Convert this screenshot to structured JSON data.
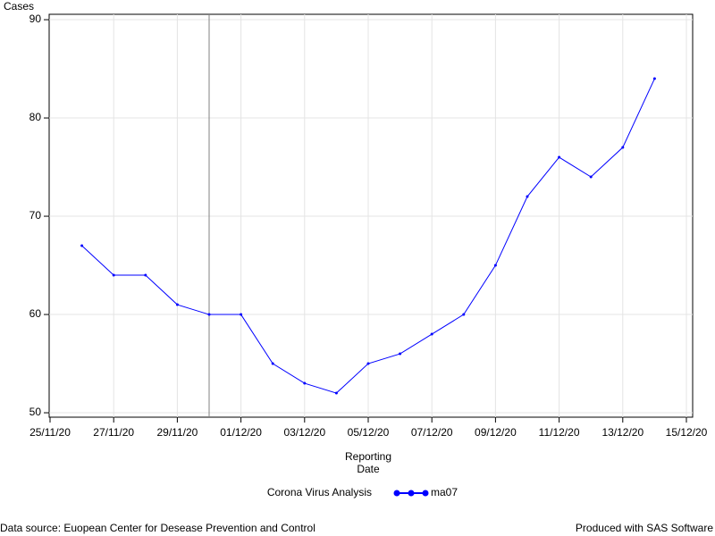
{
  "chart_data": {
    "type": "line",
    "y_label": "Cases",
    "x_label": [
      "Reporting",
      "Date"
    ],
    "x": [
      "26/11/20",
      "27/11/20",
      "28/11/20",
      "29/11/20",
      "30/11/20",
      "01/12/20",
      "02/12/20",
      "03/12/20",
      "04/12/20",
      "05/12/20",
      "06/12/20",
      "07/12/20",
      "08/12/20",
      "09/12/20",
      "10/12/20",
      "11/12/20",
      "12/12/20",
      "13/12/20",
      "14/12/20"
    ],
    "series": [
      {
        "name": "ma07",
        "color": "#0000ff",
        "values": [
          67,
          64,
          64,
          61,
          60,
          60,
          55,
          53,
          52,
          55,
          56,
          58,
          60,
          65,
          72,
          76,
          74,
          77,
          84
        ]
      }
    ],
    "legend_title": "Corona Virus Analysis",
    "xlim": [
      "25/11/20",
      "15/12/20"
    ],
    "xticks": [
      "25/11/20",
      "27/11/20",
      "29/11/20",
      "01/12/20",
      "03/12/20",
      "05/12/20",
      "07/12/20",
      "09/12/20",
      "11/12/20",
      "13/12/20",
      "15/12/20"
    ],
    "ylim": [
      49.55,
      90.55
    ],
    "yticks": [
      50,
      60,
      70,
      80,
      90
    ],
    "reference_line": "30/11/20",
    "grid": true,
    "footnote_left": "Data source: Euopean Center for Desease Prevention and Control",
    "footnote_right": "Produced with SAS Software"
  }
}
